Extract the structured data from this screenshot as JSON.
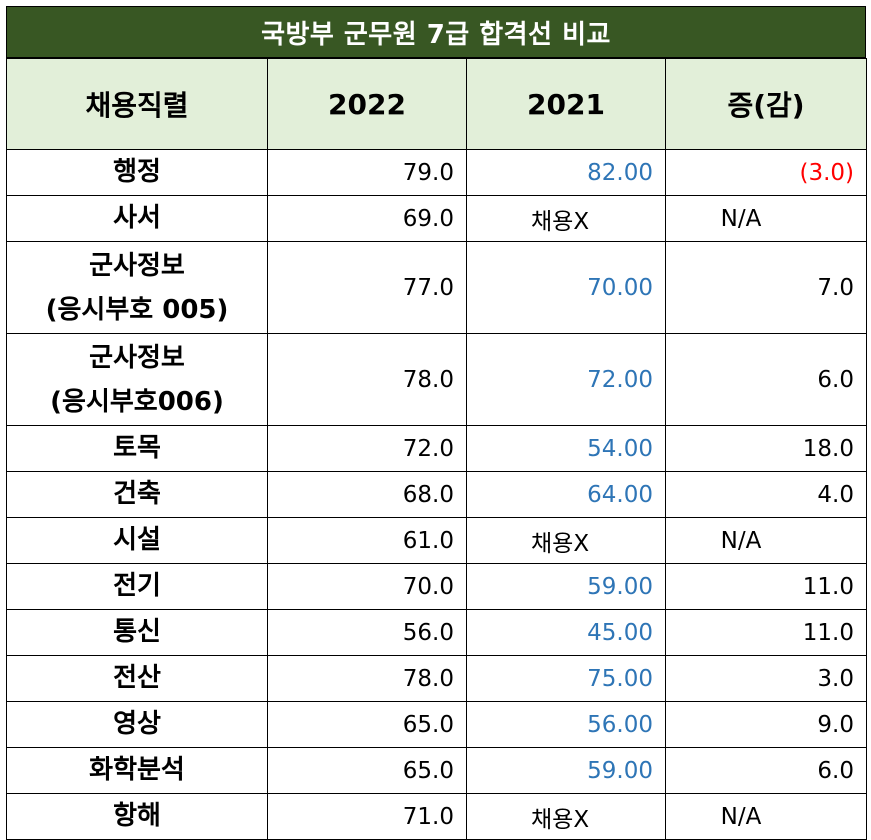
{
  "title": "국방부 군무원  7급 합격선 비교",
  "headers": [
    "채용직렬",
    "2022",
    "2021",
    "증(감)"
  ],
  "rows": [
    {
      "name": "행정",
      "y2022": "79.0",
      "y2021": "82.00",
      "diff": "(3.0)"
    },
    {
      "name": "사서",
      "y2022": "69.0",
      "y2021": "채용X",
      "diff": "N/A"
    },
    {
      "name": "군사정보\n(응시부호 005)",
      "y2022": "77.0",
      "y2021": "70.00",
      "diff": "7.0"
    },
    {
      "name": "군사정보\n(응시부호006)",
      "y2022": "78.0",
      "y2021": "72.00",
      "diff": "6.0"
    },
    {
      "name": "토목",
      "y2022": "72.0",
      "y2021": "54.00",
      "diff": "18.0"
    },
    {
      "name": "건축",
      "y2022": "68.0",
      "y2021": "64.00",
      "diff": "4.0"
    },
    {
      "name": "시설",
      "y2022": "61.0",
      "y2021": "채용X",
      "diff": "N/A"
    },
    {
      "name": "전기",
      "y2022": "70.0",
      "y2021": "59.00",
      "diff": "11.0"
    },
    {
      "name": "통신",
      "y2022": "56.0",
      "y2021": "45.00",
      "diff": "11.0"
    },
    {
      "name": "전산",
      "y2022": "78.0",
      "y2021": "75.00",
      "diff": "3.0"
    },
    {
      "name": "영상",
      "y2022": "65.0",
      "y2021": "56.00",
      "diff": "9.0"
    },
    {
      "name": "화학분석",
      "y2022": "65.0",
      "y2021": "59.00",
      "diff": "6.0"
    },
    {
      "name": "항해",
      "y2022": "71.0",
      "y2021": "채용X",
      "diff": "N/A"
    }
  ],
  "colors": {
    "title_bg": "#385723",
    "header_bg": "#e2efd9",
    "blue": "#2e75b6",
    "red": "#ff0000"
  }
}
